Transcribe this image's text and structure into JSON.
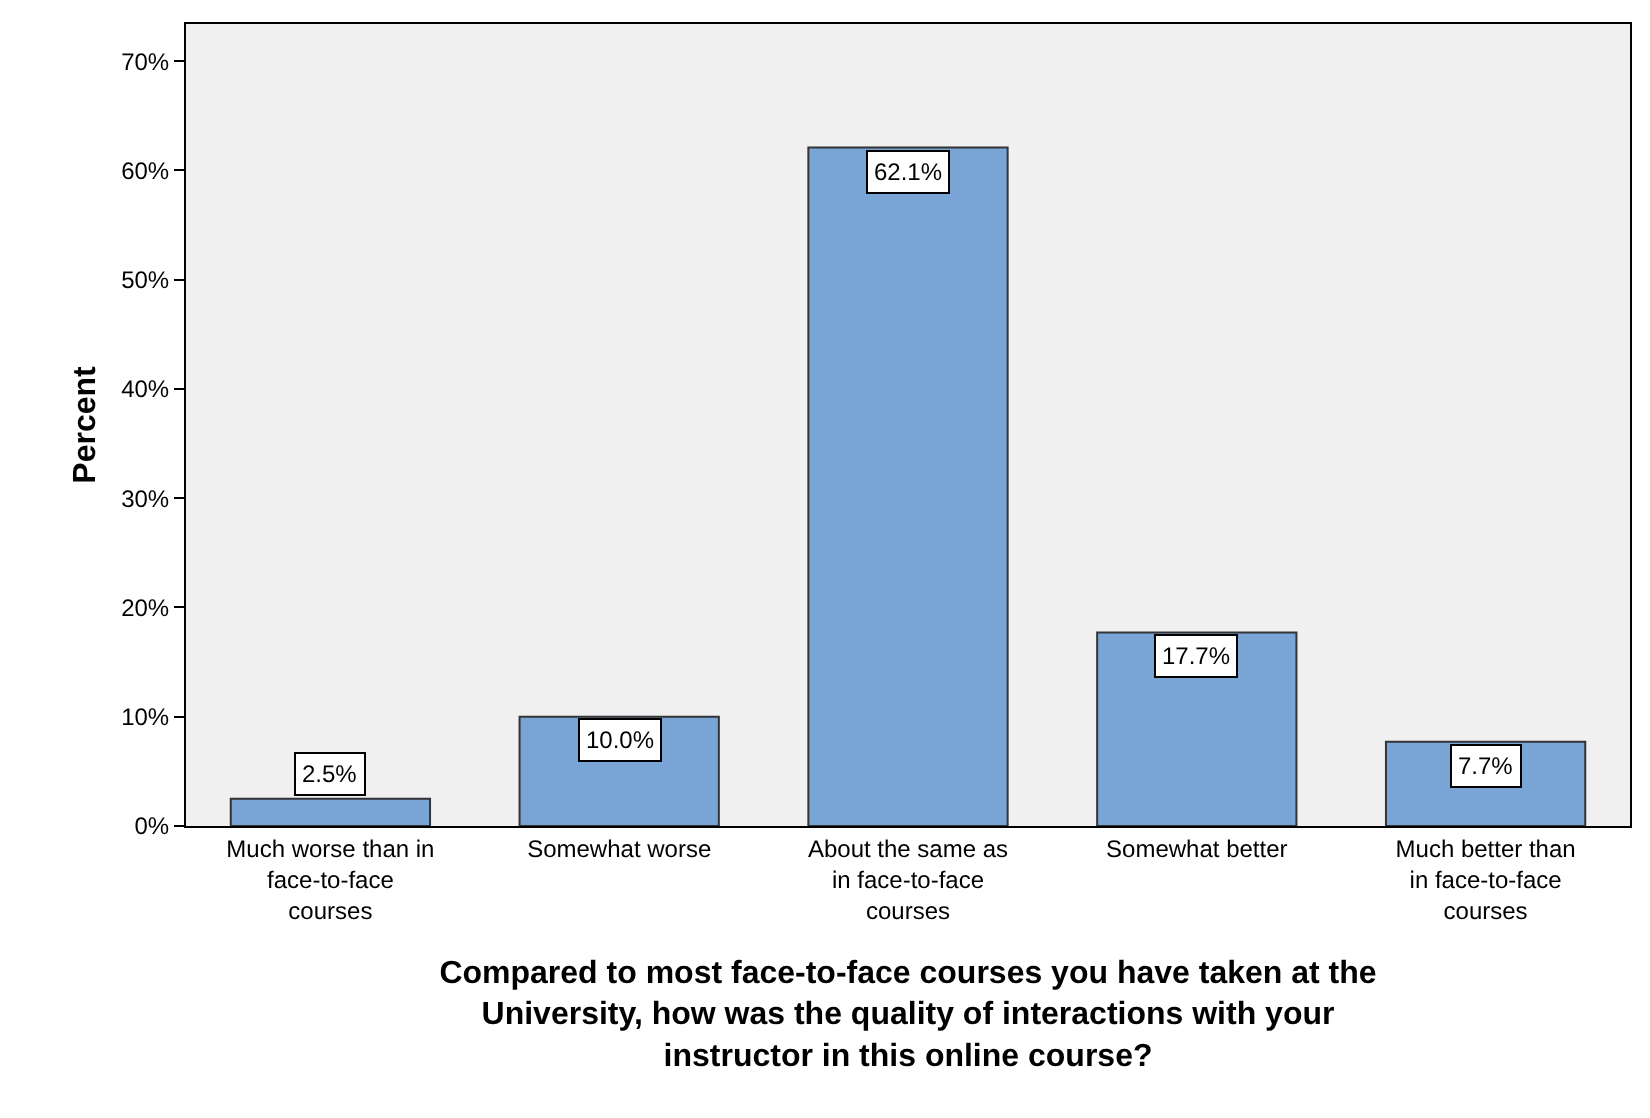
{
  "chart_data": {
    "type": "bar",
    "xlabel": "Compared to most face-to-face courses you have taken at the University, how was the quality of interactions with your instructor in this online course?",
    "ylabel": "Percent",
    "categories": [
      "Much worse than in face-to-face courses",
      "Somewhat worse",
      "About the same as in face-to-face courses",
      "Somewhat better",
      "Much better than in face-to-face courses"
    ],
    "values": [
      2.5,
      10.0,
      62.1,
      17.7,
      7.7
    ],
    "value_labels": [
      "2.5%",
      "10.0%",
      "62.1%",
      "17.7%",
      "7.7%"
    ],
    "color": "#79a5d6",
    "ylim": [
      0,
      73.4
    ],
    "yticks": [
      {
        "value": 0,
        "label": "0%"
      },
      {
        "value": 10,
        "label": "10%"
      },
      {
        "value": 20,
        "label": "20%"
      },
      {
        "value": 30,
        "label": "30%"
      },
      {
        "value": 40,
        "label": "40%"
      },
      {
        "value": 50,
        "label": "50%"
      },
      {
        "value": 60,
        "label": "60%"
      },
      {
        "value": 70,
        "label": "70%"
      }
    ],
    "grid": false
  }
}
